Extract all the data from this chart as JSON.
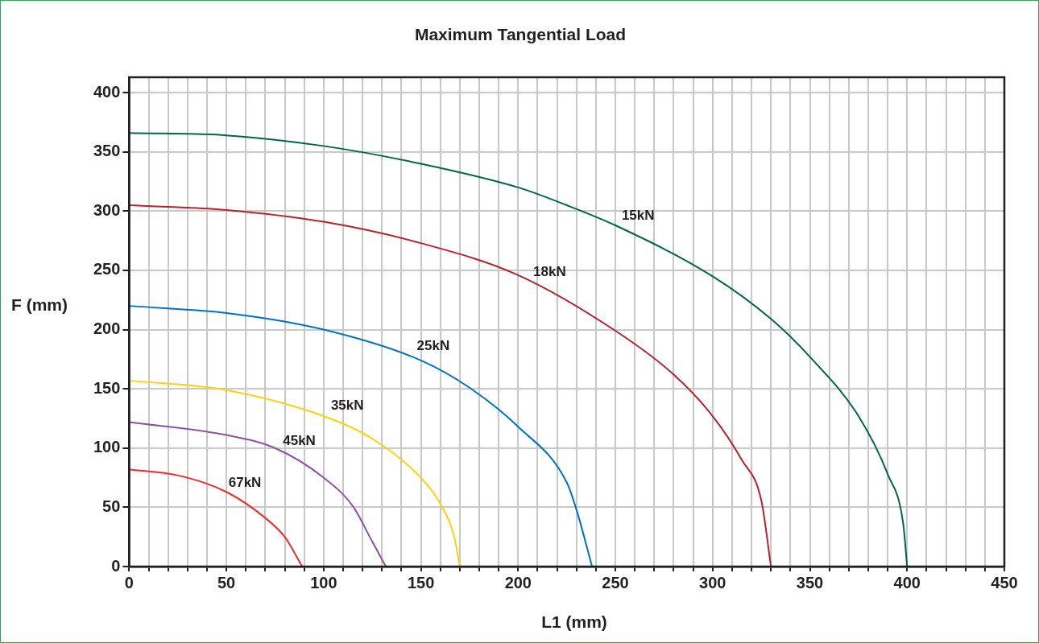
{
  "chart_data": {
    "type": "line",
    "title": "Maximum Tangential Load",
    "xlabel": "L1 (mm)",
    "ylabel": "F (mm)",
    "xlim": [
      0,
      450
    ],
    "ylim": [
      0,
      413
    ],
    "xticks": [
      0,
      {
        "value": 10,
        "label": null
      },
      {
        "value": 20,
        "label": null
      },
      {
        "value": 30,
        "label": null
      },
      {
        "value": 40,
        "label": null
      },
      50,
      {
        "value": 60,
        "label": null
      },
      {
        "value": 70,
        "label": null
      },
      {
        "value": 80,
        "label": null
      },
      {
        "value": 90,
        "label": null
      },
      100,
      {
        "value": 110,
        "label": null
      },
      {
        "value": 120,
        "label": null
      },
      {
        "value": 130,
        "label": null
      },
      {
        "value": 140,
        "label": null
      },
      150,
      {
        "value": 160,
        "label": null
      },
      {
        "value": 170,
        "label": null
      },
      {
        "value": 180,
        "label": null
      },
      {
        "value": 190,
        "label": null
      },
      200,
      {
        "value": 210,
        "label": null
      },
      {
        "value": 220,
        "label": null
      },
      {
        "value": 230,
        "label": null
      },
      {
        "value": 240,
        "label": null
      },
      250,
      {
        "value": 260,
        "label": null
      },
      {
        "value": 270,
        "label": null
      },
      {
        "value": 280,
        "label": null
      },
      {
        "value": 290,
        "label": null
      },
      300,
      {
        "value": 310,
        "label": null
      },
      {
        "value": 320,
        "label": null
      },
      {
        "value": 330,
        "label": null
      },
      {
        "value": 340,
        "label": null
      },
      350,
      {
        "value": 360,
        "label": null
      },
      {
        "value": 370,
        "label": null
      },
      {
        "value": 380,
        "label": null
      },
      {
        "value": 390,
        "label": null
      },
      400,
      {
        "value": 410,
        "label": null
      },
      {
        "value": 420,
        "label": null
      },
      {
        "value": 430,
        "label": null
      },
      {
        "value": 440,
        "label": null
      },
      450
    ],
    "yticks": [
      0,
      50,
      100,
      150,
      200,
      250,
      300,
      350,
      400
    ],
    "grid": true,
    "legend": false,
    "marker": "none",
    "line_style": "solid",
    "series": [
      {
        "name": "15kN",
        "color": "#00664a",
        "x": [
          0,
          50,
          100,
          150,
          200,
          225,
          250,
          300,
          330,
          350,
          375,
          390,
          398,
          400
        ],
        "values": [
          366,
          364,
          355,
          340,
          320,
          305,
          288,
          245,
          209,
          177,
          127,
          78,
          36,
          0
        ]
      },
      {
        "name": "18kN",
        "color": "#b5232e",
        "x": [
          0,
          50,
          100,
          150,
          200,
          250,
          280,
          300,
          315,
          325,
          330
        ],
        "values": [
          305,
          301,
          291,
          273,
          246,
          199,
          162,
          127,
          90,
          56,
          0
        ]
      },
      {
        "name": "25kN",
        "color": "#0072c6",
        "x": [
          0,
          50,
          100,
          150,
          175,
          200,
          225,
          230,
          238
        ],
        "values": [
          220,
          214,
          200,
          174,
          151,
          118,
          71,
          48,
          0
        ]
      },
      {
        "name": "35kN",
        "color": "#fdd20a",
        "x": [
          0,
          50,
          100,
          125,
          150,
          160,
          167,
          170
        ],
        "values": [
          157,
          149,
          127,
          108,
          75,
          53,
          26,
          0
        ]
      },
      {
        "name": "45kN",
        "color": "#8c52a5",
        "x": [
          0,
          50,
          75,
          100,
          115,
          125,
          132
        ],
        "values": [
          122,
          111,
          100,
          75,
          51,
          21,
          0
        ]
      },
      {
        "name": "67kN",
        "color": "#ee2b2e",
        "x": [
          0,
          25,
          50,
          70,
          80,
          89
        ],
        "values": [
          82,
          77,
          63,
          41,
          25,
          0
        ]
      }
    ]
  }
}
